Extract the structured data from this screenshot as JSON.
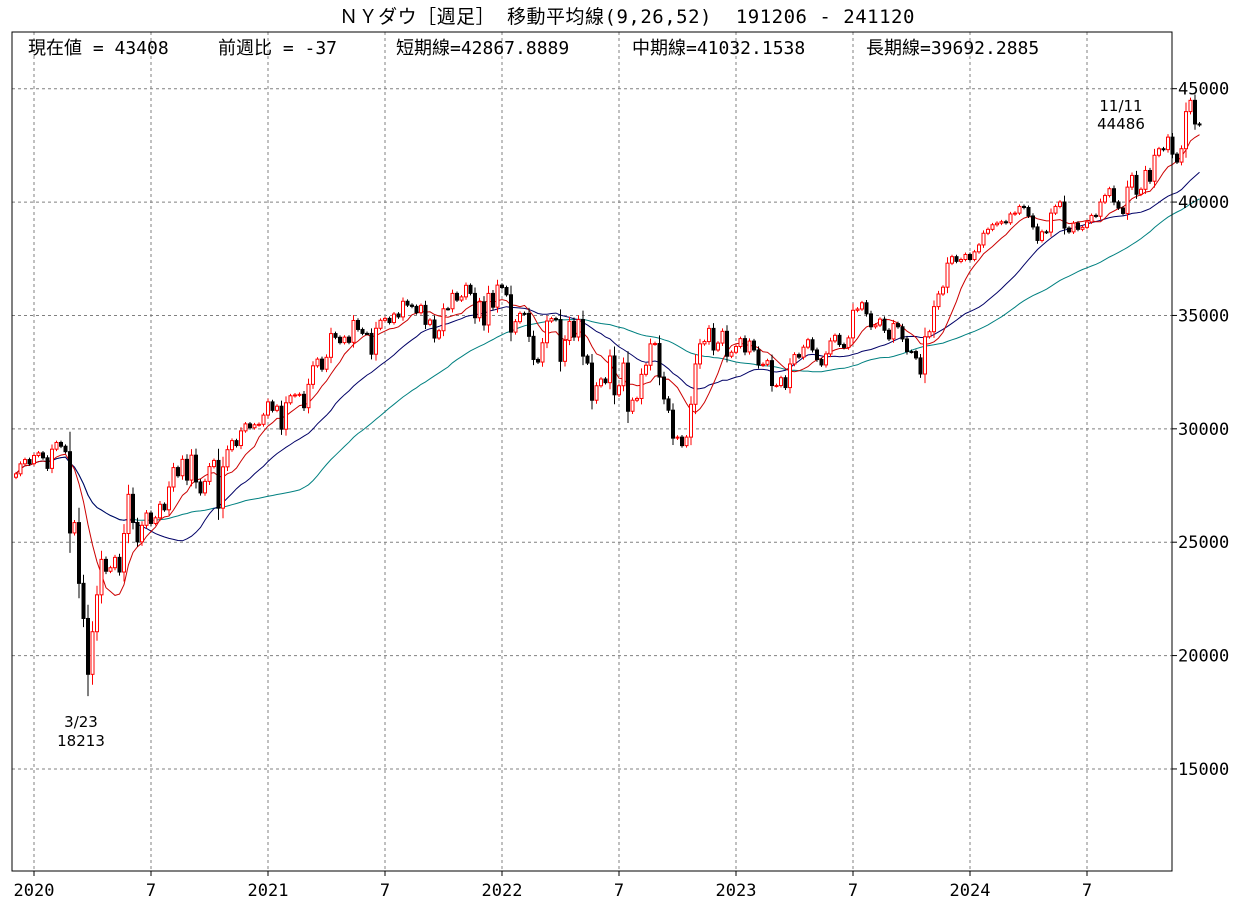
{
  "title": "ＮＹダウ［週足］ 移動平均線(9,26,52)  191206 - 241120",
  "stats": {
    "current": "現在値 = 43408",
    "change": "前週比 = -37",
    "short": "短期線=42867.8889",
    "mid": "中期線=41032.1538",
    "long": "長期線=39692.2885"
  },
  "annotations": {
    "high_date": "11/11",
    "high_value": "44486",
    "low_date": "3/23",
    "low_value": "18213"
  },
  "colors": {
    "up_candle": "#ff0000",
    "down_candle": "#000000",
    "short_ma": "#cc0000",
    "mid_ma": "#000066",
    "long_ma": "#008080",
    "grid": "#808080"
  },
  "chart_data": {
    "type": "candlestick",
    "title": "ＮＹダウ［週足］ 移動平均線(9,26,52)  191206 - 241120",
    "date_range": [
      "2019-12-06",
      "2024-11-20"
    ],
    "x_tick_labels": [
      "2020",
      "7",
      "2021",
      "7",
      "2022",
      "7",
      "2023",
      "7",
      "2024",
      "7"
    ],
    "y_ticks": [
      15000,
      20000,
      25000,
      30000,
      35000,
      40000,
      45000
    ],
    "y_tick_labels": [
      "15000",
      "20000",
      "25000",
      "30000",
      "35000",
      "40000",
      "45000"
    ],
    "ylim": [
      10500,
      47500
    ],
    "grid": true,
    "moving_averages": [
      {
        "period": 9,
        "role": "short",
        "last": 42867.8889
      },
      {
        "period": 26,
        "role": "mid",
        "last": 41032.1538
      },
      {
        "period": 52,
        "role": "long",
        "last": 39692.2885
      }
    ],
    "weekly_close": [
      28015,
      28455,
      28645,
      28462,
      28823,
      28939,
      28722,
      28256,
      29102,
      29398,
      29232,
      28992,
      25409,
      25865,
      23185,
      21636,
      19174,
      21052,
      22679,
      24242,
      23719,
      23875,
      24331,
      23685,
      25383,
      27110,
      25871,
      25016,
      25745,
      26287,
      25827,
      26075,
      26672,
      26428,
      27434,
      28290,
      27931,
      28653,
      27739,
      28837,
      27657,
      27174,
      27682,
      28335,
      28606,
      26502,
      28323,
      29080,
      29479,
      29263,
      29910,
      30218,
      30046,
      30179,
      30199,
      30606,
      31188,
      30814,
      30997,
      29983,
      31148,
      31458,
      31494,
      31521,
      30932,
      31961,
      32779,
      33073,
      32628,
      33153,
      34200,
      34035,
      33801,
      34043,
      33815,
      34778,
      34382,
      34208,
      34207,
      33290,
      34434,
      34786,
      34870,
      34687,
      35062,
      34935,
      35625,
      35455,
      35399,
      35120,
      35443,
      34607,
      34798,
      34003,
      34326,
      35295,
      35294,
      35972,
      35677,
      35819,
      36328,
      35971,
      34899,
      35601,
      34580,
      35971,
      35365,
      36338,
      36231,
      35912,
      34265,
      34725,
      35090,
      35089,
      34079,
      33059,
      32945,
      33795,
      34754,
      34861,
      34818,
      32977,
      33899,
      34738,
      34049,
      34818,
      33206,
      32899,
      31261,
      31900,
      32196,
      32036,
      33212,
      31501,
      31900,
      32899,
      30775,
      31262,
      31338,
      32403,
      32803,
      33746,
      33761,
      32283,
      31318,
      30822,
      29590,
      29634,
      29260,
      29634,
      31082,
      32861,
      33747,
      33849,
      34429,
      33476,
      33781,
      34300,
      33202,
      33376,
      33630,
      33978,
      33391,
      33869,
      33476,
      32817,
      32844,
      33006,
      31909,
      31909,
      32254,
      31819,
      32860,
      33274,
      33161,
      33601,
      33928,
      33477,
      33055,
      32818,
      33301,
      33876,
      34122,
      33716,
      33589,
      34010,
      35227,
      35283,
      35559,
      35069,
      34500,
      34576,
      34837,
      34346,
      33964,
      34641,
      34500,
      33963,
      33408,
      33407,
      33127,
      32418,
      34061,
      34283,
      35390,
      35946,
      36246,
      37305,
      37592,
      37385,
      37467,
      37690,
      37466,
      37806,
      38109,
      38625,
      38797,
      39000,
      39069,
      39131,
      39088,
      39475,
      39512,
      39807,
      39760,
      39387,
      38904,
      38308,
      38689,
      38676,
      39513,
      39807,
      40003,
      38852,
      38686,
      39069,
      38797,
      38885,
      39123,
      39411,
      39375,
      40001,
      40287,
      40589,
      40003,
      39737,
      39498,
      40659,
      41175,
      40345,
      40563,
      41393,
      40919,
      42063,
      42352,
      42313,
      42863,
      42114,
      41763,
      42353,
      43989,
      44486,
      43445,
      43408
    ]
  }
}
